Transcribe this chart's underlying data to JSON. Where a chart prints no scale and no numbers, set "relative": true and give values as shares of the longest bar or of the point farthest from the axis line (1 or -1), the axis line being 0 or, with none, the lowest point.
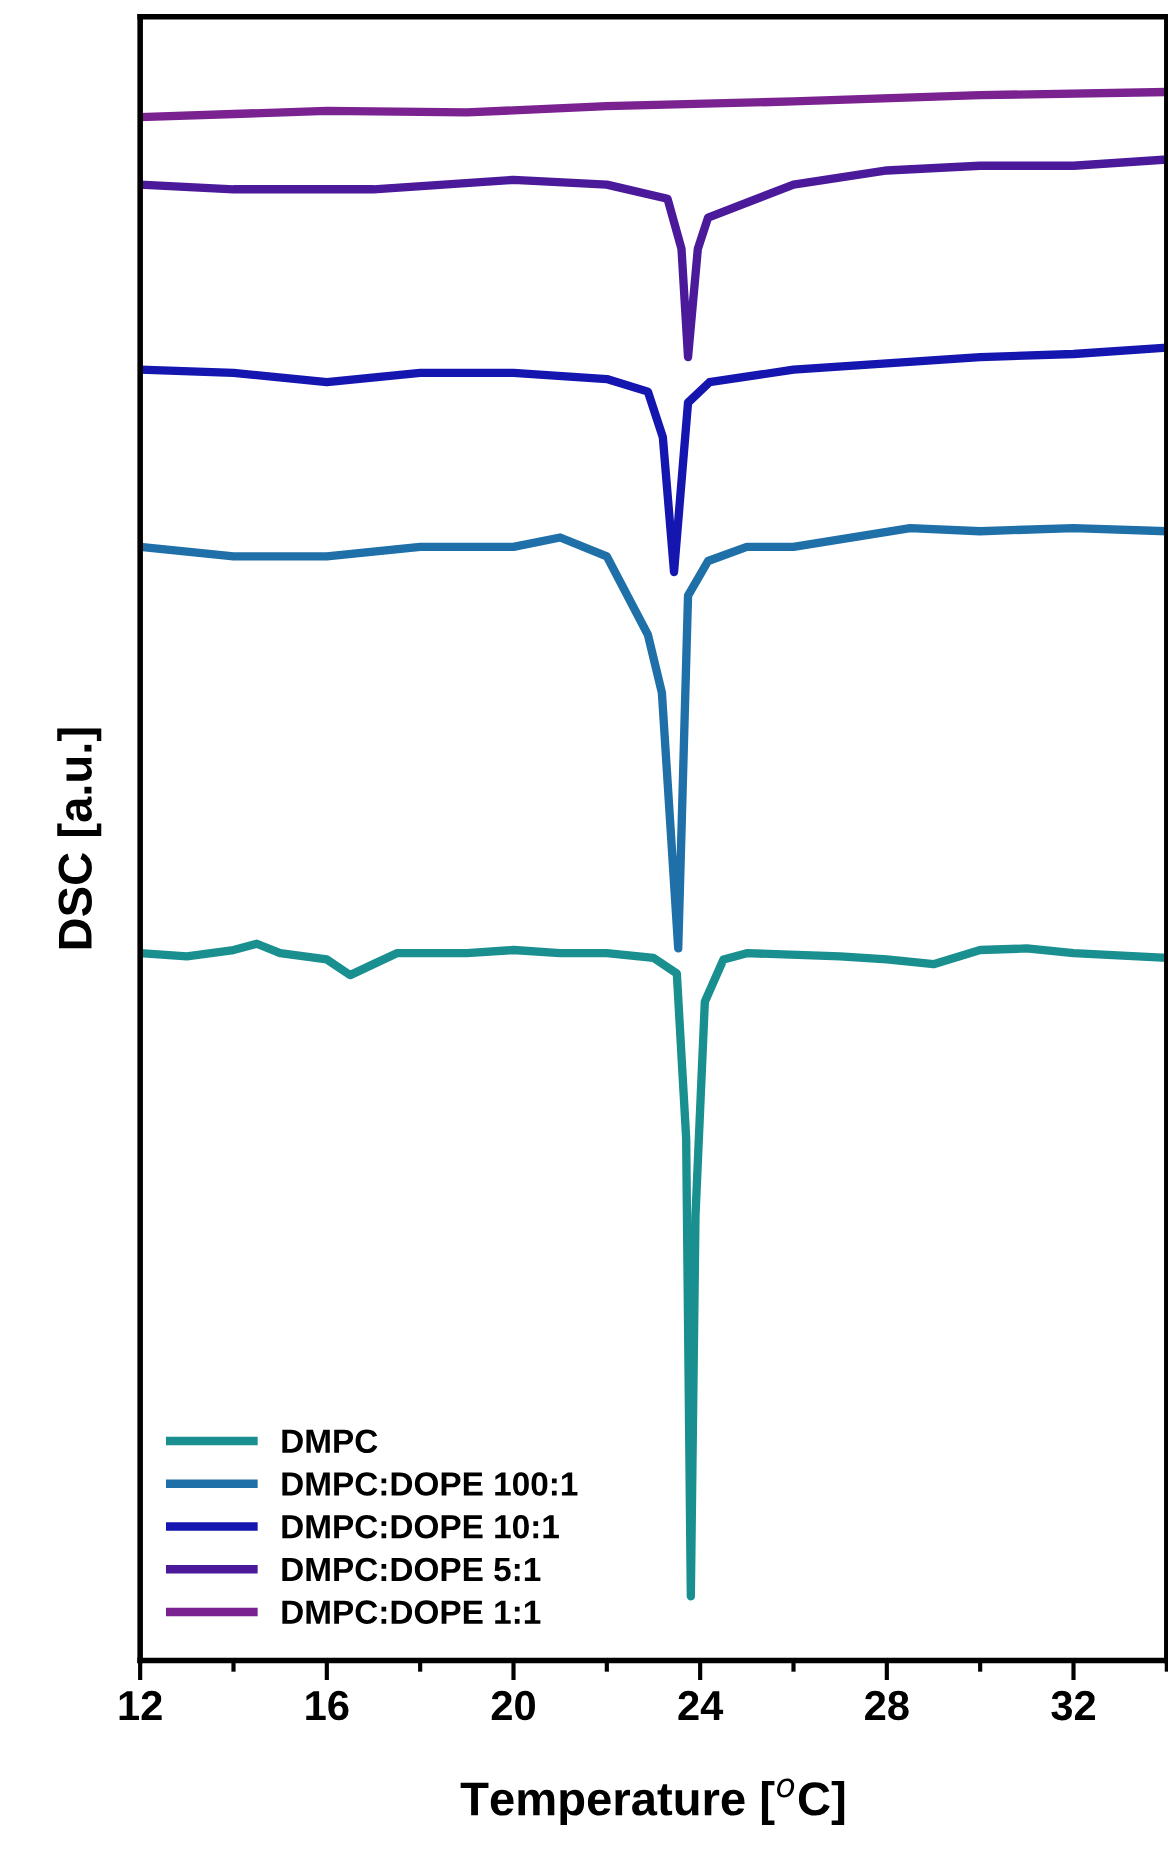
{
  "chart_data": {
    "type": "line",
    "relative": true,
    "xlabel": "Temperature [$^{o}$C]",
    "ylabel": "DSC [a.u.]",
    "xlim": [
      12,
      34
    ],
    "xticks": [
      12,
      16,
      20,
      24,
      28,
      32
    ],
    "legend": "bottom left",
    "grid": false,
    "line_style": "solid",
    "marker": "none",
    "series": [
      {
        "name": "DMPC",
        "color": "#1a8f8f",
        "x": [
          12,
          13,
          14,
          14.5,
          15,
          16,
          16.5,
          17,
          17.5,
          19,
          20,
          21,
          22,
          23,
          23.5,
          23.7,
          23.8,
          23.9,
          24.1,
          24.5,
          25,
          27,
          28,
          29,
          30,
          31,
          32,
          34
        ],
        "values": [
          0.451,
          0.449,
          0.453,
          0.457,
          0.451,
          0.447,
          0.437,
          0.444,
          0.451,
          0.451,
          0.453,
          0.451,
          0.451,
          0.448,
          0.438,
          0.333,
          0.041,
          0.284,
          0.42,
          0.447,
          0.451,
          0.449,
          0.447,
          0.444,
          0.453,
          0.454,
          0.451,
          0.448
        ]
      },
      {
        "name": "DMPC:DOPE 100:1",
        "color": "#1f6fa8",
        "x": [
          12,
          14,
          16,
          18,
          20,
          21,
          22,
          22.88,
          23.18,
          23.53,
          23.74,
          24.17,
          25,
          26,
          28.5,
          30,
          32,
          34
        ],
        "values": [
          0.71,
          0.704,
          0.704,
          0.71,
          0.71,
          0.716,
          0.704,
          0.654,
          0.617,
          0.454,
          0.679,
          0.701,
          0.71,
          0.71,
          0.722,
          0.72,
          0.722,
          0.72
        ]
      },
      {
        "name": "DMPC:DOPE 10:1",
        "color": "#1515b0",
        "x": [
          12,
          14,
          16,
          18,
          20,
          22,
          22.88,
          23.2,
          23.44,
          23.74,
          24.2,
          26,
          28,
          30,
          32,
          34
        ],
        "values": [
          0.823,
          0.821,
          0.815,
          0.821,
          0.821,
          0.817,
          0.809,
          0.78,
          0.694,
          0.802,
          0.815,
          0.823,
          0.827,
          0.831,
          0.833,
          0.837
        ]
      },
      {
        "name": "DMPC:DOPE 5:1",
        "color": "#4b1a9a",
        "x": [
          12,
          14,
          17,
          20,
          22,
          23.3,
          23.6,
          23.74,
          23.95,
          24.17,
          26,
          28,
          30,
          32,
          34
        ],
        "values": [
          0.941,
          0.938,
          0.938,
          0.944,
          0.941,
          0.932,
          0.9,
          0.831,
          0.9,
          0.92,
          0.941,
          0.95,
          0.953,
          0.953,
          0.957
        ]
      },
      {
        "name": "DMPC:DOPE 1:1",
        "color": "#7a2290",
        "x": [
          12,
          14,
          16,
          19,
          22,
          26,
          30,
          34
        ],
        "values": [
          0.984,
          0.986,
          0.988,
          0.987,
          0.991,
          0.994,
          0.998,
          1.0
        ]
      }
    ]
  }
}
